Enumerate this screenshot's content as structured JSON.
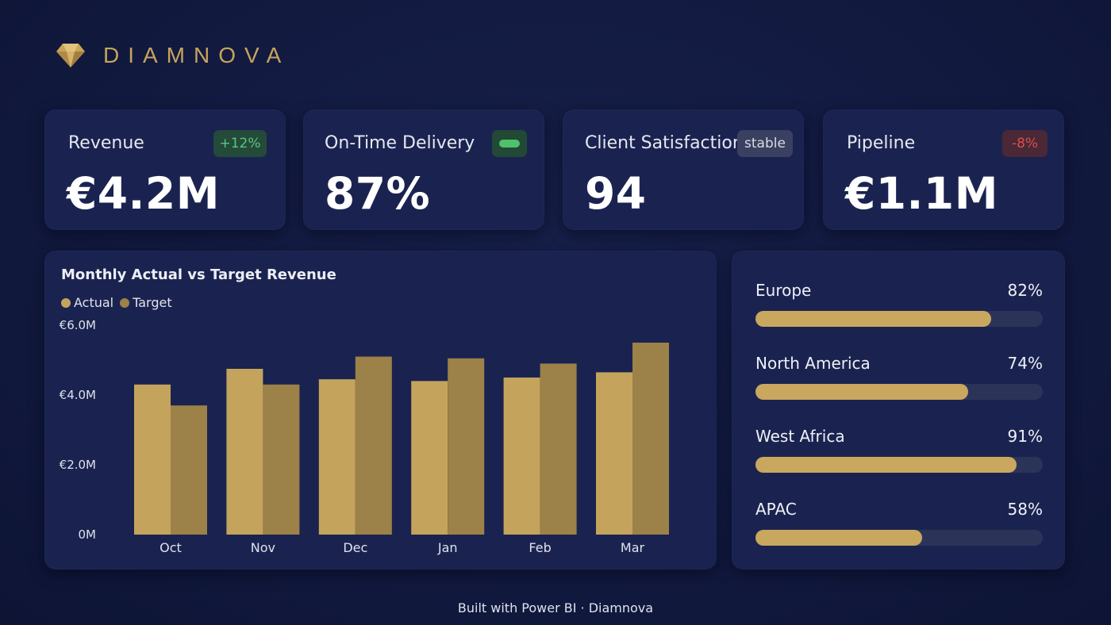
{
  "brand": {
    "name": "DIAMNOVA",
    "logo_icon": "diamond-icon",
    "color": "#c6a45c"
  },
  "kpis": [
    {
      "label": "Revenue",
      "value": "€4.2M",
      "badge": "+12%",
      "badge_type": "up"
    },
    {
      "label": "On-Time Delivery",
      "value": "87%",
      "badge": "",
      "badge_type": "pill"
    },
    {
      "label": "Client Satisfaction",
      "value": "94",
      "badge": "stable",
      "badge_type": "stable"
    },
    {
      "label": "Pipeline",
      "value": "€1.1M",
      "badge": "-8%",
      "badge_type": "down"
    }
  ],
  "chart_data": {
    "type": "bar",
    "title": "Monthly Actual vs Target Revenue",
    "categories": [
      "Oct",
      "Nov",
      "Dec",
      "Jan",
      "Feb",
      "Mar"
    ],
    "series": [
      {
        "name": "Actual",
        "values": [
          4.3,
          4.75,
          4.45,
          4.4,
          4.5,
          4.65
        ],
        "color": "#c4a45c"
      },
      {
        "name": "Target",
        "values": [
          3.7,
          4.3,
          5.1,
          5.05,
          4.9,
          5.5
        ],
        "color": "#9c8148"
      }
    ],
    "y_ticks": [
      "€6.0M",
      "€4.0M",
      "€2.0M",
      "0M"
    ],
    "y_tick_values": [
      6,
      4,
      2,
      0
    ],
    "ylim": [
      0,
      6
    ],
    "legend": "top-left",
    "grid": false
  },
  "regions": [
    {
      "name": "Europe",
      "pct_label": "82%",
      "value": 82
    },
    {
      "name": "North America",
      "pct_label": "74%",
      "value": 74
    },
    {
      "name": "West Africa",
      "pct_label": "91%",
      "value": 91
    },
    {
      "name": "APAC",
      "pct_label": "58%",
      "value": 58
    }
  ],
  "footer": {
    "text": "Built with Power BI · Diamnova"
  }
}
